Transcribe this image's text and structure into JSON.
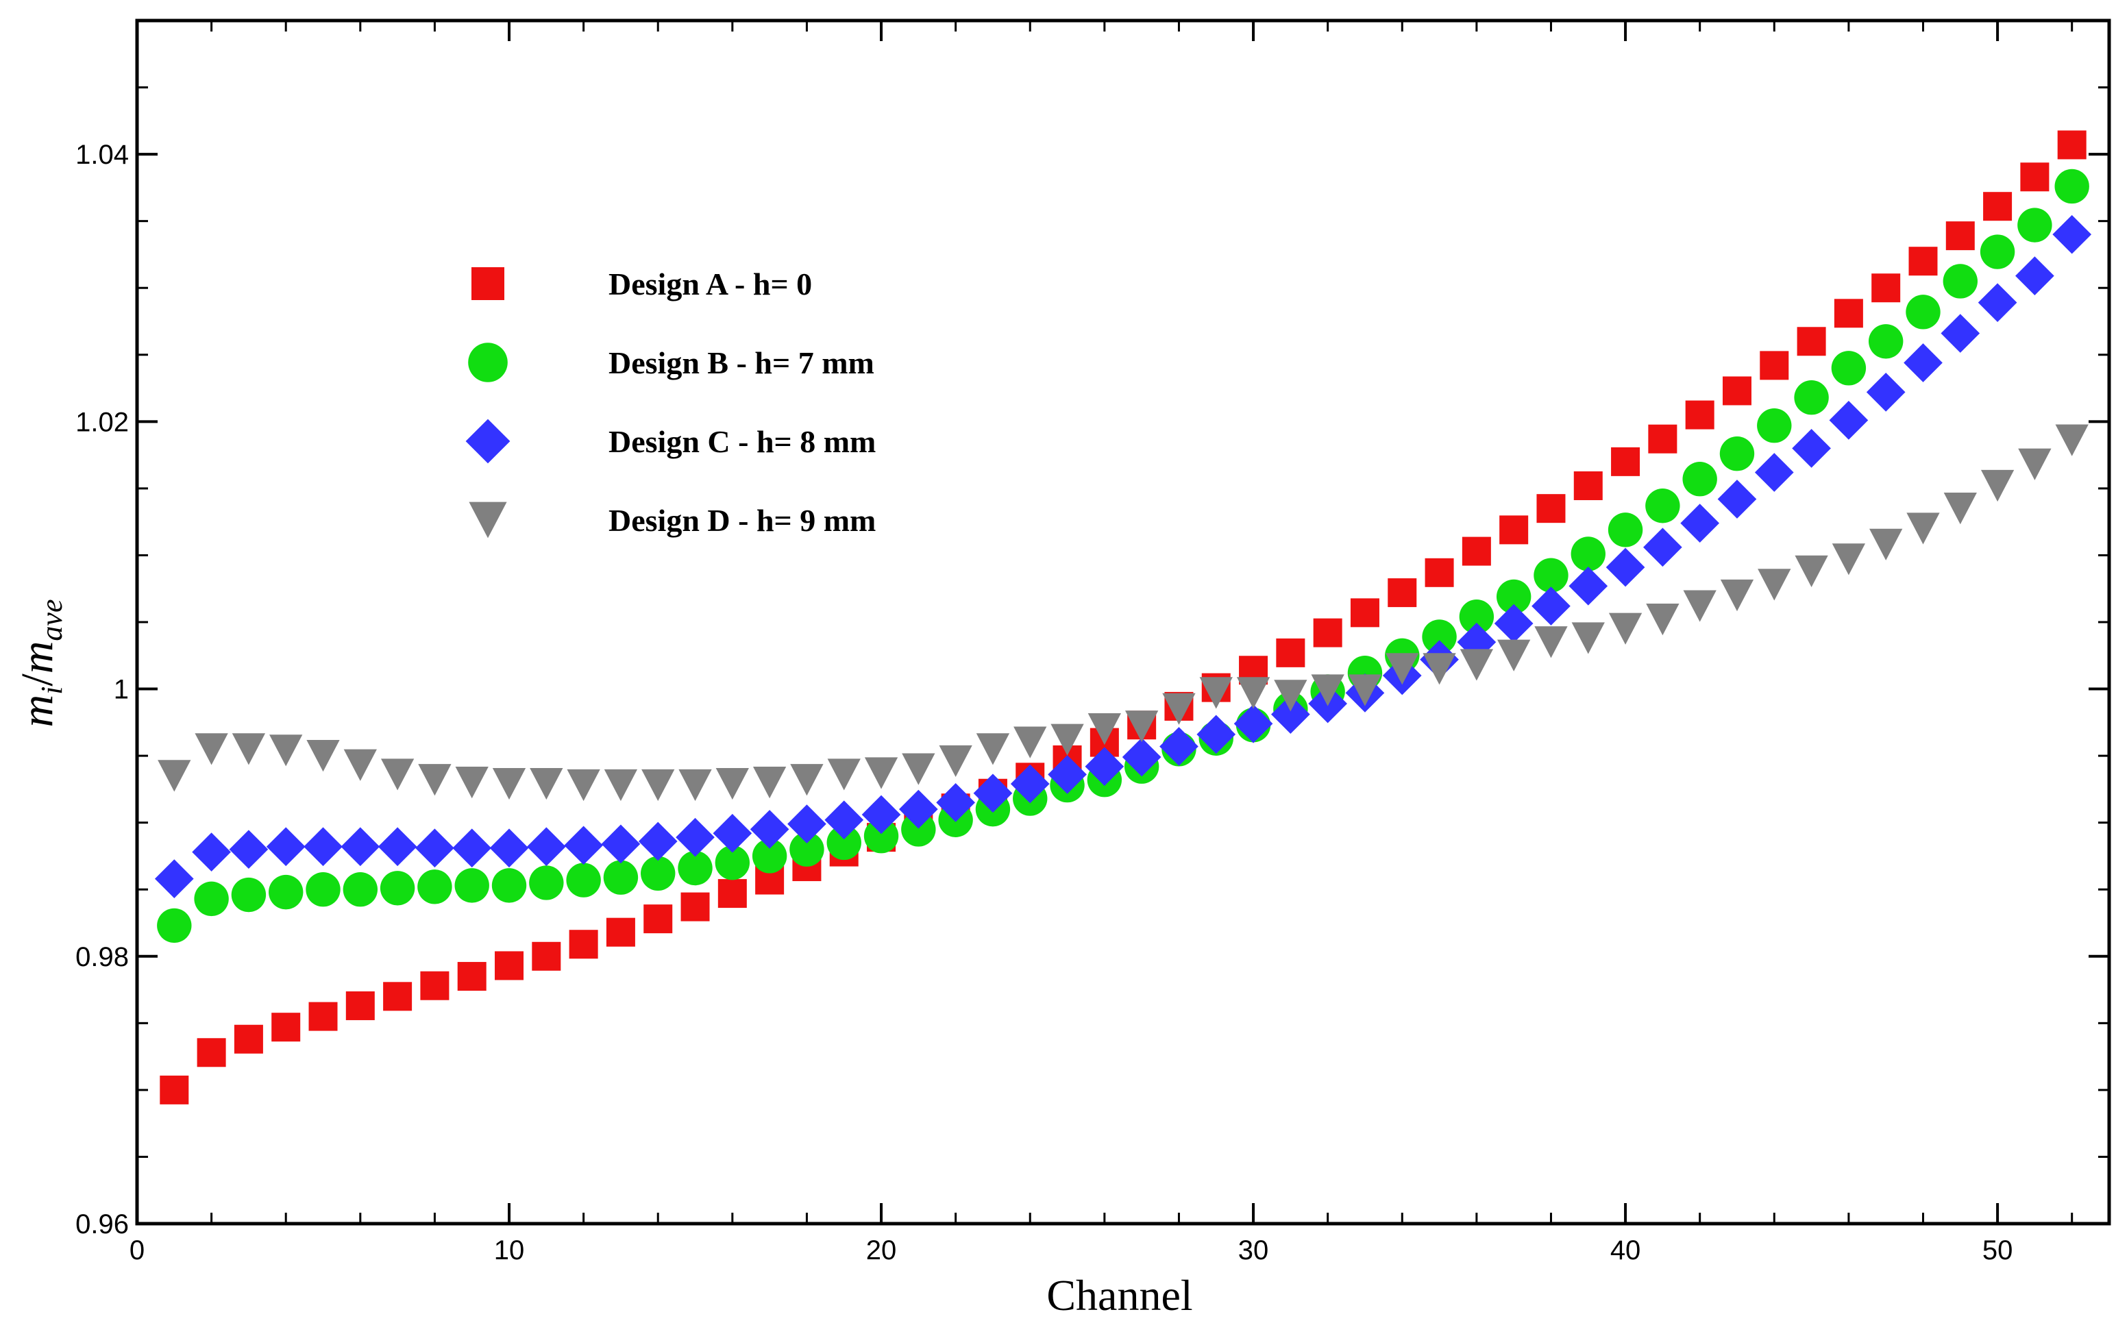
{
  "chart_data": {
    "type": "scatter",
    "title": "",
    "xlabel": "Channel",
    "ylabel": {
      "base1": "m",
      "sub1": "i",
      "sep": "/",
      "base2": "m",
      "sub2": "ave"
    },
    "xlim": [
      0,
      53
    ],
    "ylim": [
      0.96,
      1.05
    ],
    "x_major_ticks": [
      0,
      10,
      20,
      30,
      40,
      50
    ],
    "x_tick_labels": [
      "0",
      "10",
      "20",
      "30",
      "40",
      "50"
    ],
    "x_minor_step": 2,
    "y_major_ticks": [
      0.96,
      0.98,
      1.0,
      1.02,
      1.04
    ],
    "y_tick_labels": [
      "0.96",
      "0.98",
      "1",
      "1.02",
      "1.04"
    ],
    "y_minor_step": 0.005,
    "grid": false,
    "legend_position": "top-left",
    "x": [
      1,
      2,
      3,
      4,
      5,
      6,
      7,
      8,
      9,
      10,
      11,
      12,
      13,
      14,
      15,
      16,
      17,
      18,
      19,
      20,
      21,
      22,
      23,
      24,
      25,
      26,
      27,
      28,
      29,
      30,
      31,
      32,
      33,
      34,
      35,
      36,
      37,
      38,
      39,
      40,
      41,
      42,
      43,
      44,
      45,
      46,
      47,
      48,
      49,
      50,
      51,
      52
    ],
    "series": [
      {
        "name": "Design A - h= 0",
        "marker": "square",
        "color": "#ee1111",
        "values": [
          0.97,
          0.9728,
          0.9738,
          0.9747,
          0.9755,
          0.9763,
          0.977,
          0.9778,
          0.9785,
          0.9793,
          0.98,
          0.9809,
          0.9818,
          0.9828,
          0.9837,
          0.9847,
          0.9857,
          0.9867,
          0.9878,
          0.9889,
          0.99,
          0.9911,
          0.9922,
          0.9934,
          0.9947,
          0.996,
          0.9973,
          0.9987,
          1.0001,
          1.0014,
          1.0027,
          1.0042,
          1.0057,
          1.0072,
          1.0087,
          1.0103,
          1.0119,
          1.0135,
          1.0152,
          1.017,
          1.0187,
          1.0205,
          1.0223,
          1.0242,
          1.026,
          1.0281,
          1.03,
          1.032,
          1.0339,
          1.0361,
          1.0383,
          1.0407
        ]
      },
      {
        "name": "Design B - h= 7 mm",
        "marker": "circle",
        "color": "#11dd11",
        "values": [
          0.9823,
          0.9843,
          0.9846,
          0.9848,
          0.985,
          0.985,
          0.9851,
          0.9852,
          0.9853,
          0.9853,
          0.9855,
          0.9857,
          0.9859,
          0.9862,
          0.9866,
          0.987,
          0.9875,
          0.988,
          0.9885,
          0.989,
          0.9895,
          0.9902,
          0.991,
          0.9918,
          0.9928,
          0.9932,
          0.9942,
          0.9955,
          0.9963,
          0.9973,
          0.9985,
          0.9998,
          1.0012,
          1.0025,
          1.0039,
          1.0054,
          1.0069,
          1.0085,
          1.0101,
          1.0119,
          1.0137,
          1.0157,
          1.0176,
          1.0197,
          1.0218,
          1.024,
          1.026,
          1.0282,
          1.0305,
          1.0327,
          1.0347,
          1.0376
        ]
      },
      {
        "name": "Design C - h= 8 mm",
        "marker": "diamond",
        "color": "#3333ff",
        "values": [
          0.9858,
          0.9878,
          0.988,
          0.9882,
          0.9882,
          0.9882,
          0.9882,
          0.9881,
          0.9881,
          0.9881,
          0.9882,
          0.9883,
          0.9884,
          0.9886,
          0.9889,
          0.9892,
          0.9895,
          0.9899,
          0.9902,
          0.9906,
          0.991,
          0.9915,
          0.9922,
          0.9929,
          0.9936,
          0.9942,
          0.9949,
          0.9957,
          0.9966,
          0.9974,
          0.9981,
          0.9989,
          0.9997,
          1.001,
          1.0022,
          1.0035,
          1.0049,
          1.0062,
          1.0077,
          1.0091,
          1.0106,
          1.0124,
          1.0142,
          1.0162,
          1.018,
          1.0201,
          1.0222,
          1.0244,
          1.0266,
          1.0289,
          1.0309,
          1.034
        ]
      },
      {
        "name": "Design D - h= 9 mm",
        "marker": "triangle-down",
        "color": "#808080",
        "values": [
          0.9935,
          0.9955,
          0.9955,
          0.9954,
          0.995,
          0.9943,
          0.9936,
          0.9932,
          0.993,
          0.9929,
          0.9929,
          0.9928,
          0.9928,
          0.9928,
          0.9928,
          0.9929,
          0.993,
          0.9932,
          0.9936,
          0.9937,
          0.994,
          0.9946,
          0.9955,
          0.996,
          0.9962,
          0.997,
          0.9972,
          0.9985,
          0.9997,
          0.9997,
          0.9995,
          0.9999,
          0.9999,
          1.0015,
          1.0015,
          1.0018,
          1.0025,
          1.0035,
          1.0038,
          1.0045,
          1.0052,
          1.0062,
          1.007,
          1.0078,
          1.0088,
          1.0097,
          1.0108,
          1.012,
          1.0135,
          1.0152,
          1.0168,
          1.0186
        ]
      }
    ]
  }
}
